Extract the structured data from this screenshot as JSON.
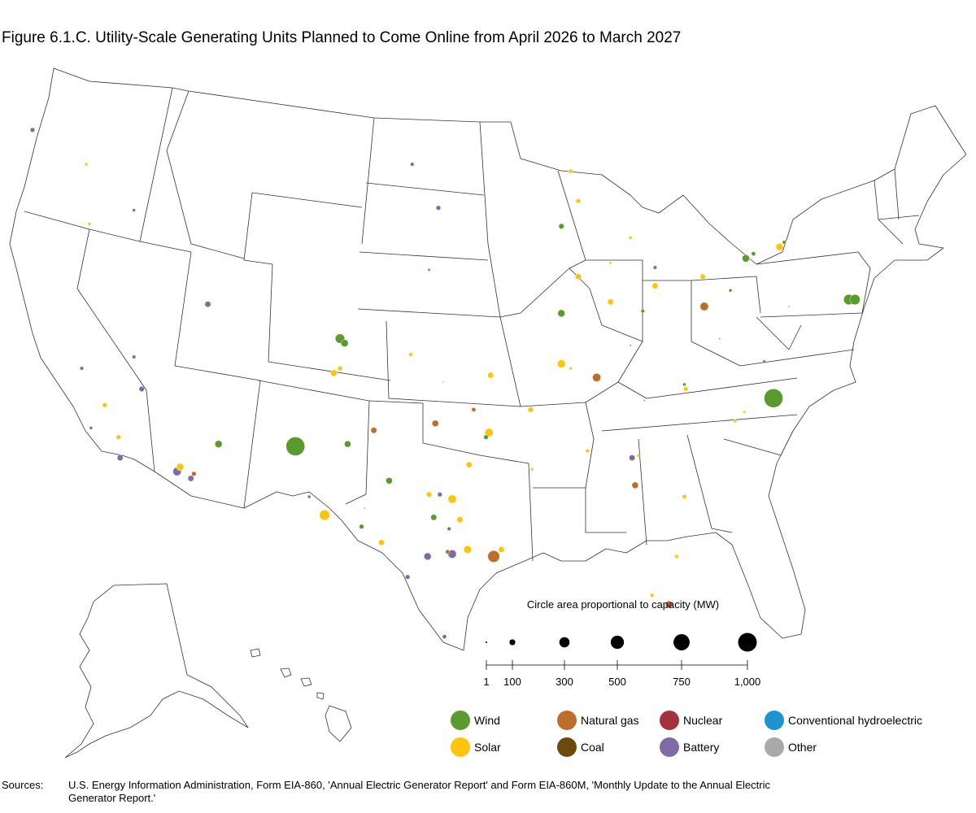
{
  "title": "Figure 6.1.C. Utility-Scale Generating Units Planned to Come Online from April 2026 to March 2027",
  "scale": {
    "heading": "Circle area proportional to capacity (MW)",
    "ticks": [
      {
        "label": "1",
        "mw": 1
      },
      {
        "label": "100",
        "mw": 100
      },
      {
        "label": "300",
        "mw": 300
      },
      {
        "label": "500",
        "mw": 500
      },
      {
        "label": "750",
        "mw": 750
      },
      {
        "label": "1,000",
        "mw": 1000
      }
    ]
  },
  "legend": [
    {
      "label": "Wind",
      "color": "#5a9a2e"
    },
    {
      "label": "Natural gas",
      "color": "#bd6e2a"
    },
    {
      "label": "Nuclear",
      "color": "#a3323d"
    },
    {
      "label": "Conventional hydroelectric",
      "color": "#1f93d0"
    },
    {
      "label": "Solar",
      "color": "#ffc50c"
    },
    {
      "label": "Coal",
      "color": "#6b4a0e"
    },
    {
      "label": "Battery",
      "color": "#7f6ca6"
    },
    {
      "label": "Other",
      "color": "#a9a9a9"
    }
  ],
  "sources_label": "Sources:",
  "sources_text": "U.S. Energy Information Administration, Form EIA-860, 'Annual Electric Generator Report' and Form EIA-860M, 'Monthly Update to the Annual Electric Generator Report.'",
  "chart_data": {
    "type": "scatter",
    "units": "MW",
    "plants": [
      {
        "fuel": "Wind",
        "lon": -106.9,
        "lat": 34.5,
        "mw": 1000
      },
      {
        "fuel": "Wind",
        "lon": -75.8,
        "lat": 36.6,
        "mw": 1000
      },
      {
        "fuel": "Wind",
        "lon": -70.9,
        "lat": 40.9,
        "mw": 300
      },
      {
        "fuel": "Wind",
        "lon": -70.5,
        "lat": 40.9,
        "mw": 300
      },
      {
        "fuel": "Wind",
        "lon": -104.0,
        "lat": 39.2,
        "mw": 250
      },
      {
        "fuel": "Wind",
        "lon": -103.7,
        "lat": 39.0,
        "mw": 150
      },
      {
        "fuel": "Wind",
        "lon": -111.9,
        "lat": 34.6,
        "mw": 150
      },
      {
        "fuel": "Wind",
        "lon": -89.6,
        "lat": 40.3,
        "mw": 150
      },
      {
        "fuel": "Wind",
        "lon": -77.6,
        "lat": 42.7,
        "mw": 150
      },
      {
        "fuel": "Wind",
        "lon": -103.5,
        "lat": 34.6,
        "mw": 120
      },
      {
        "fuel": "Wind",
        "lon": -100.8,
        "lat": 33.0,
        "mw": 120
      },
      {
        "fuel": "Wind",
        "lon": -97.9,
        "lat": 31.4,
        "mw": 100
      },
      {
        "fuel": "Wind",
        "lon": -89.6,
        "lat": 44.1,
        "mw": 80
      },
      {
        "fuel": "Wind",
        "lon": -94.5,
        "lat": 34.9,
        "mw": 60
      },
      {
        "fuel": "Wind",
        "lon": -102.6,
        "lat": 31.0,
        "mw": 60
      },
      {
        "fuel": "Wind",
        "lon": -77.1,
        "lat": 42.9,
        "mw": 50
      },
      {
        "fuel": "Wind",
        "lon": -75.1,
        "lat": 43.4,
        "mw": 40
      },
      {
        "fuel": "Wind",
        "lon": -84.3,
        "lat": 40.4,
        "mw": 40
      },
      {
        "fuel": "Wind",
        "lon": -78.6,
        "lat": 41.3,
        "mw": 30
      },
      {
        "fuel": "Wind",
        "lon": -81.6,
        "lat": 37.2,
        "mw": 30
      },
      {
        "fuel": "Solar",
        "lon": -105.0,
        "lat": 31.5,
        "mw": 300
      },
      {
        "fuel": "Solar",
        "lon": -94.3,
        "lat": 35.1,
        "mw": 200
      },
      {
        "fuel": "Solar",
        "lon": -96.7,
        "lat": 32.2,
        "mw": 200
      },
      {
        "fuel": "Solar",
        "lon": -89.6,
        "lat": 38.1,
        "mw": 180
      },
      {
        "fuel": "Solar",
        "lon": -95.7,
        "lat": 30.0,
        "mw": 170
      },
      {
        "fuel": "Solar",
        "lon": -75.4,
        "lat": 43.2,
        "mw": 150
      },
      {
        "fuel": "Solar",
        "lon": -114.4,
        "lat": 33.6,
        "mw": 150
      },
      {
        "fuel": "Solar",
        "lon": -104.4,
        "lat": 37.7,
        "mw": 120
      },
      {
        "fuel": "Solar",
        "lon": -88.5,
        "lat": 41.9,
        "mw": 100
      },
      {
        "fuel": "Solar",
        "lon": -86.4,
        "lat": 40.8,
        "mw": 100
      },
      {
        "fuel": "Solar",
        "lon": -83.5,
        "lat": 41.5,
        "mw": 100
      },
      {
        "fuel": "Solar",
        "lon": -94.2,
        "lat": 37.6,
        "mw": 100
      },
      {
        "fuel": "Solar",
        "lon": -96.2,
        "lat": 31.3,
        "mw": 100
      },
      {
        "fuel": "Solar",
        "lon": -93.5,
        "lat": 30.0,
        "mw": 100
      },
      {
        "fuel": "Solar",
        "lon": -101.3,
        "lat": 30.3,
        "mw": 100
      },
      {
        "fuel": "Solar",
        "lon": -95.6,
        "lat": 33.7,
        "mw": 100
      },
      {
        "fuel": "Solar",
        "lon": -80.4,
        "lat": 41.9,
        "mw": 80
      },
      {
        "fuel": "Solar",
        "lon": -91.6,
        "lat": 36.1,
        "mw": 80
      },
      {
        "fuel": "Solar",
        "lon": -98.2,
        "lat": 32.4,
        "mw": 80
      },
      {
        "fuel": "Solar",
        "lon": -119.3,
        "lat": 36.3,
        "mw": 60
      },
      {
        "fuel": "Solar",
        "lon": -118.4,
        "lat": 34.9,
        "mw": 60
      },
      {
        "fuel": "Solar",
        "lon": -104.0,
        "lat": 37.9,
        "mw": 60
      },
      {
        "fuel": "Solar",
        "lon": -81.5,
        "lat": 37.0,
        "mw": 60
      },
      {
        "fuel": "Solar",
        "lon": -88.5,
        "lat": 45.2,
        "mw": 60
      },
      {
        "fuel": "Solar",
        "lon": -89.0,
        "lat": 46.5,
        "mw": 50
      },
      {
        "fuel": "Solar",
        "lon": -81.6,
        "lat": 32.3,
        "mw": 50
      },
      {
        "fuel": "Solar",
        "lon": -87.9,
        "lat": 34.3,
        "mw": 40
      },
      {
        "fuel": "Solar",
        "lon": -83.7,
        "lat": 28.0,
        "mw": 40
      },
      {
        "fuel": "Solar",
        "lon": -99.4,
        "lat": 38.5,
        "mw": 40
      },
      {
        "fuel": "Solar",
        "lon": -82.1,
        "lat": 29.7,
        "mw": 40
      },
      {
        "fuel": "Solar",
        "lon": -120.3,
        "lat": 44.2,
        "mw": 30
      },
      {
        "fuel": "Solar",
        "lon": -120.5,
        "lat": 46.8,
        "mw": 30
      },
      {
        "fuel": "Solar",
        "lon": -78.3,
        "lat": 35.6,
        "mw": 30
      },
      {
        "fuel": "Solar",
        "lon": -85.1,
        "lat": 43.6,
        "mw": 30
      },
      {
        "fuel": "Solar",
        "lon": -91.5,
        "lat": 33.5,
        "mw": 25
      },
      {
        "fuel": "Solar",
        "lon": -89.0,
        "lat": 37.9,
        "mw": 25
      },
      {
        "fuel": "Solar",
        "lon": -84.6,
        "lat": 34.1,
        "mw": 25
      },
      {
        "fuel": "Solar",
        "lon": -77.7,
        "lat": 36.0,
        "mw": 20
      },
      {
        "fuel": "Solar",
        "lon": -86.4,
        "lat": 42.5,
        "mw": 20
      },
      {
        "fuel": "Natural gas",
        "lon": -94.0,
        "lat": 29.7,
        "mw": 400
      },
      {
        "fuel": "Natural gas",
        "lon": -87.3,
        "lat": 37.5,
        "mw": 200
      },
      {
        "fuel": "Natural gas",
        "lon": -80.3,
        "lat": 40.6,
        "mw": 200
      },
      {
        "fuel": "Natural gas",
        "lon": -82.6,
        "lat": 27.6,
        "mw": 150
      },
      {
        "fuel": "Natural gas",
        "lon": -84.8,
        "lat": 32.8,
        "mw": 120
      },
      {
        "fuel": "Natural gas",
        "lon": -97.8,
        "lat": 35.5,
        "mw": 120
      },
      {
        "fuel": "Natural gas",
        "lon": -101.8,
        "lat": 35.2,
        "mw": 100
      },
      {
        "fuel": "Natural gas",
        "lon": -113.5,
        "lat": 33.3,
        "mw": 60
      },
      {
        "fuel": "Natural gas",
        "lon": -95.3,
        "lat": 36.1,
        "mw": 50
      },
      {
        "fuel": "Natural gas",
        "lon": -97.0,
        "lat": 29.9,
        "mw": 50
      },
      {
        "fuel": "Natural gas",
        "lon": -98.2,
        "lat": 42.2,
        "mw": 20
      },
      {
        "fuel": "Battery",
        "lon": -114.6,
        "lat": 33.4,
        "mw": 200
      },
      {
        "fuel": "Battery",
        "lon": -96.7,
        "lat": 29.8,
        "mw": 200
      },
      {
        "fuel": "Battery",
        "lon": -98.3,
        "lat": 29.7,
        "mw": 150
      },
      {
        "fuel": "Battery",
        "lon": -112.6,
        "lat": 40.7,
        "mw": 100
      },
      {
        "fuel": "Battery",
        "lon": -113.7,
        "lat": 33.1,
        "mw": 100
      },
      {
        "fuel": "Battery",
        "lon": -85.0,
        "lat": 34.0,
        "mw": 100
      },
      {
        "fuel": "Battery",
        "lon": -118.3,
        "lat": 34.0,
        "mw": 100
      },
      {
        "fuel": "Battery",
        "lon": -116.9,
        "lat": 37.0,
        "mw": 80
      },
      {
        "fuel": "Battery",
        "lon": -124.0,
        "lat": 48.3,
        "mw": 60
      },
      {
        "fuel": "Battery",
        "lon": -97.6,
        "lat": 44.9,
        "mw": 60
      },
      {
        "fuel": "Battery",
        "lon": -99.6,
        "lat": 28.8,
        "mw": 60
      },
      {
        "fuel": "Battery",
        "lon": -97.5,
        "lat": 32.4,
        "mw": 60
      },
      {
        "fuel": "Battery",
        "lon": -97.2,
        "lat": 26.2,
        "mw": 50
      },
      {
        "fuel": "Battery",
        "lon": -117.4,
        "lat": 38.4,
        "mw": 40
      },
      {
        "fuel": "Battery",
        "lon": -120.8,
        "lat": 37.9,
        "mw": 40
      },
      {
        "fuel": "Battery",
        "lon": -99.3,
        "lat": 46.8,
        "mw": 40
      },
      {
        "fuel": "Battery",
        "lon": -83.5,
        "lat": 42.3,
        "mw": 40
      },
      {
        "fuel": "Battery",
        "lon": -106.0,
        "lat": 32.3,
        "mw": 30
      },
      {
        "fuel": "Battery",
        "lon": -120.2,
        "lat": 35.3,
        "mw": 30
      },
      {
        "fuel": "Battery",
        "lon": -96.9,
        "lat": 30.9,
        "mw": 40
      },
      {
        "fuel": "Battery",
        "lon": -117.4,
        "lat": 44.8,
        "mw": 30
      },
      {
        "fuel": "Battery",
        "lon": -76.4,
        "lat": 38.2,
        "mw": 30
      },
      {
        "fuel": "Other",
        "lon": -102.4,
        "lat": 31.8,
        "mw": 10
      },
      {
        "fuel": "Other",
        "lon": -74.8,
        "lat": 40.6,
        "mw": 10
      },
      {
        "fuel": "Other",
        "lon": -97.3,
        "lat": 37.3,
        "mw": 5
      },
      {
        "fuel": "Conventional hydroelectric",
        "lon": -79.3,
        "lat": 39.2,
        "mw": 5
      },
      {
        "fuel": "Conventional hydroelectric",
        "lon": -84.2,
        "lat": 36.5,
        "mw": 3
      },
      {
        "fuel": "Nuclear",
        "lon": -85.1,
        "lat": 38.9,
        "mw": 2
      }
    ]
  }
}
